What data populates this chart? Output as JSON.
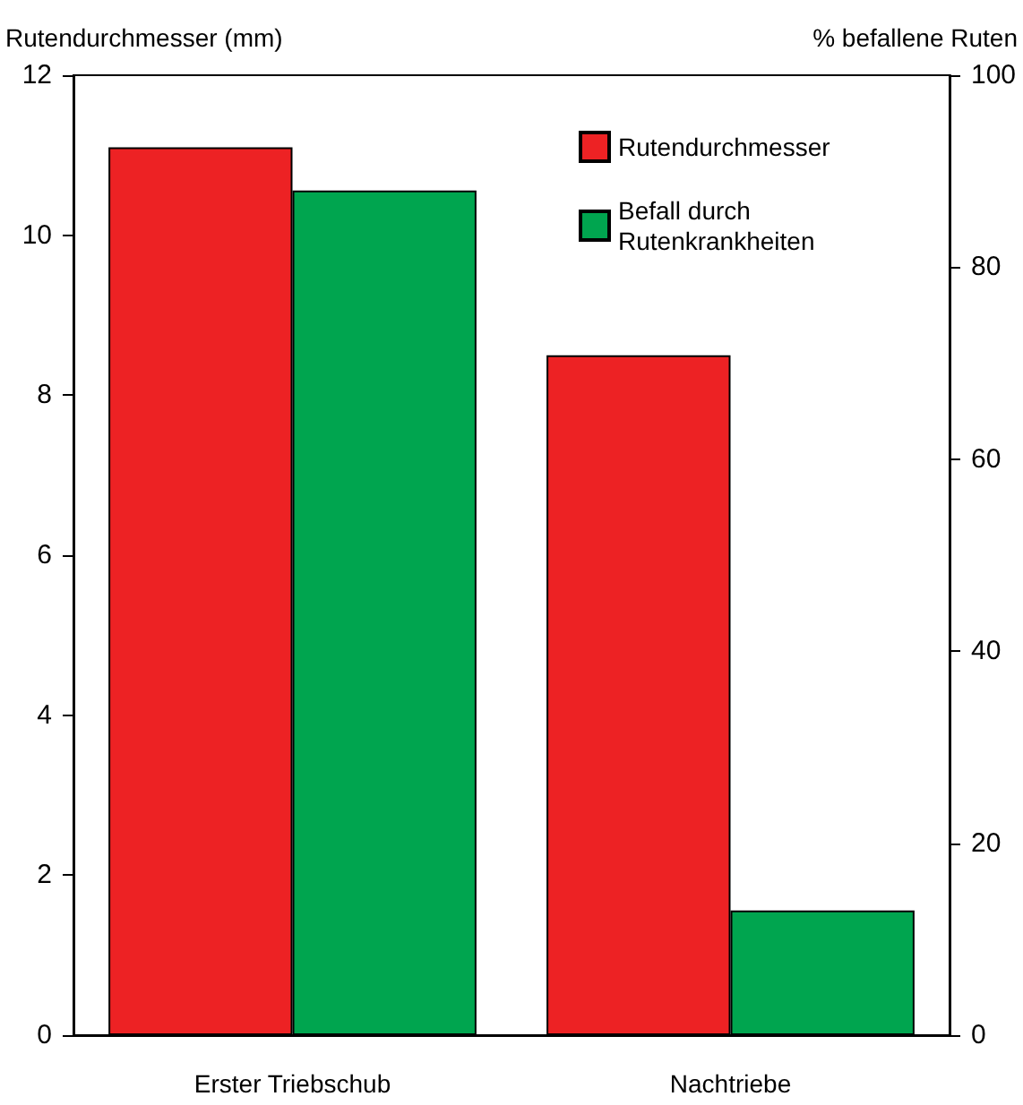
{
  "chart_data": {
    "type": "bar",
    "ylabel": "Rutendurchmesser (mm)",
    "y2label": "% befallene Ruten",
    "categories": [
      "Erster Triebschub",
      "Nachtriebe"
    ],
    "series": [
      {
        "name": "Rutendurchmesser",
        "color": "#ed2224",
        "values": [
          11.1,
          8.5
        ]
      },
      {
        "name": "Befall durch Rutenkrankheiten",
        "color": "#00a54f",
        "values": [
          88,
          13
        ],
        "axis": "y2"
      }
    ],
    "ylim": [
      0,
      12
    ],
    "yticks": [
      0,
      2,
      4,
      6,
      8,
      10,
      12
    ],
    "y2lim": [
      0,
      100
    ],
    "y2ticks": [
      0,
      20,
      40,
      60,
      80,
      100
    ],
    "legend": "top right",
    "grid": false
  }
}
